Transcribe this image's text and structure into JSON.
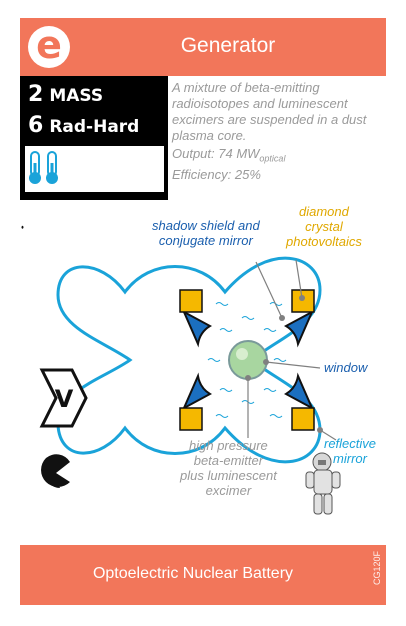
{
  "card": {
    "logo_letter": "e",
    "title": "Generator",
    "stats": [
      {
        "value": "2",
        "label": "MASS"
      },
      {
        "value": "6",
        "label": "Rad-Hard"
      }
    ],
    "description": "A mixture of beta-emitting radioisotopes and luminescent excimers are suspended in a dust plasma core.",
    "output_prefix": "Output: 74 MW",
    "output_sub": "optical",
    "efficiency": "Efficiency: 25%",
    "diagram_labels": {
      "shadow_shield": [
        "shadow shield and",
        "conjugate mirror"
      ],
      "diamond": [
        "diamond",
        "crystal",
        "photovoltaics"
      ],
      "window": "window",
      "reflective": [
        "reflective",
        "mirror"
      ],
      "emitter": [
        "high pressure",
        "beta-emitter",
        "plus luminescent",
        "excimer"
      ]
    },
    "footer_text": "Optoelectric Nuclear Battery",
    "card_code": "CG120F",
    "colors": {
      "accent": "#f2765a",
      "blue": "#1b5fae",
      "cyan": "#1aa3d9",
      "gold": "#e0a800"
    }
  }
}
